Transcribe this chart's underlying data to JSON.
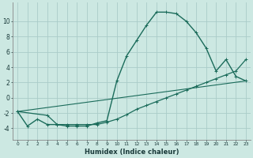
{
  "xlabel": "Humidex (Indice chaleur)",
  "background_color": "#cce8e2",
  "grid_color": "#aaccc8",
  "line_color": "#1a6b5a",
  "xlim": [
    -0.5,
    23.5
  ],
  "ylim": [
    -5.5,
    12.5
  ],
  "xticks": [
    0,
    1,
    2,
    3,
    4,
    5,
    6,
    7,
    8,
    9,
    10,
    11,
    12,
    13,
    14,
    15,
    16,
    17,
    18,
    19,
    20,
    21,
    22,
    23
  ],
  "yticks": [
    -4,
    -2,
    0,
    2,
    4,
    6,
    8,
    10
  ],
  "curve1_x": [
    0,
    1,
    2,
    3,
    4,
    5,
    6,
    7,
    8,
    9,
    10,
    11,
    12,
    13,
    14,
    15,
    16,
    17,
    18,
    19,
    20,
    21,
    22,
    23
  ],
  "curve1_y": [
    -1.8,
    -3.7,
    -2.8,
    -3.5,
    -3.5,
    -3.7,
    -3.7,
    -3.7,
    -3.3,
    -3.0,
    2.2,
    5.5,
    7.5,
    9.5,
    11.2,
    11.2,
    11.0,
    10.0,
    8.5,
    6.5,
    3.5,
    5.0,
    2.8,
    2.2
  ],
  "line1_x": [
    0,
    3,
    4,
    5,
    6,
    7,
    8,
    9,
    10,
    11,
    12,
    13,
    14,
    15,
    16,
    17,
    18,
    19,
    20,
    21,
    22,
    23
  ],
  "line1_y": [
    -1.8,
    -2.3,
    -3.5,
    -3.5,
    -3.5,
    -3.5,
    -3.5,
    -3.2,
    -2.8,
    -2.2,
    -1.5,
    -1.0,
    -0.5,
    0.0,
    0.5,
    1.0,
    1.5,
    2.0,
    2.5,
    3.0,
    3.5,
    5.0
  ],
  "line2_x": [
    0,
    23
  ],
  "line2_y": [
    -1.8,
    2.2
  ]
}
